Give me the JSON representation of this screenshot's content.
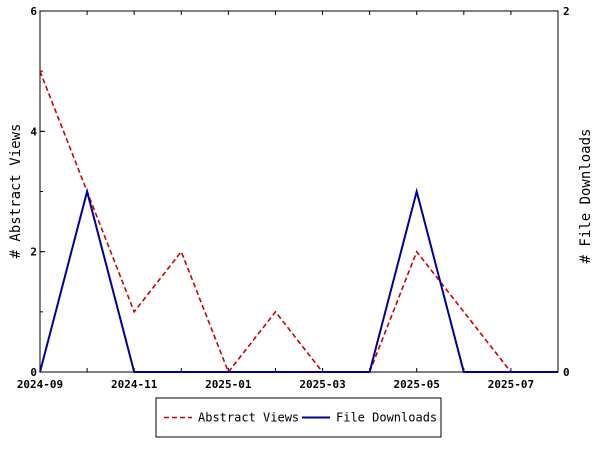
{
  "chart_data": {
    "type": "line",
    "x": [
      "2024-09",
      "2024-10",
      "2024-11",
      "2024-12",
      "2025-01",
      "2025-02",
      "2025-03",
      "2025-04",
      "2025-05",
      "2025-06",
      "2025-07",
      "2025-08"
    ],
    "x_tick_labels": [
      "2024-09",
      "2024-11",
      "2025-01",
      "2025-03",
      "2025-05",
      "2025-07"
    ],
    "y_left": {
      "label": "# Abstract Views",
      "ylim": [
        0,
        6
      ],
      "ticks": [
        "0",
        "2",
        "4",
        "6"
      ]
    },
    "y_right": {
      "label": "# File Downloads",
      "ylim": [
        0,
        2
      ],
      "ticks": [
        "0",
        "2"
      ]
    },
    "series": [
      {
        "name": "Abstract Views",
        "axis": "left",
        "color": "#cc0000",
        "dash": "dashed",
        "values": [
          5,
          3,
          1,
          2,
          0,
          1,
          0,
          0,
          2,
          1,
          0,
          0
        ]
      },
      {
        "name": "File Downloads",
        "axis": "right",
        "color": "#000099",
        "dash": "solid",
        "values": [
          0,
          1,
          0,
          0,
          0,
          0,
          0,
          0,
          1,
          0,
          0,
          0
        ]
      }
    ],
    "legend_placement": "bottom-center",
    "grid": false
  }
}
